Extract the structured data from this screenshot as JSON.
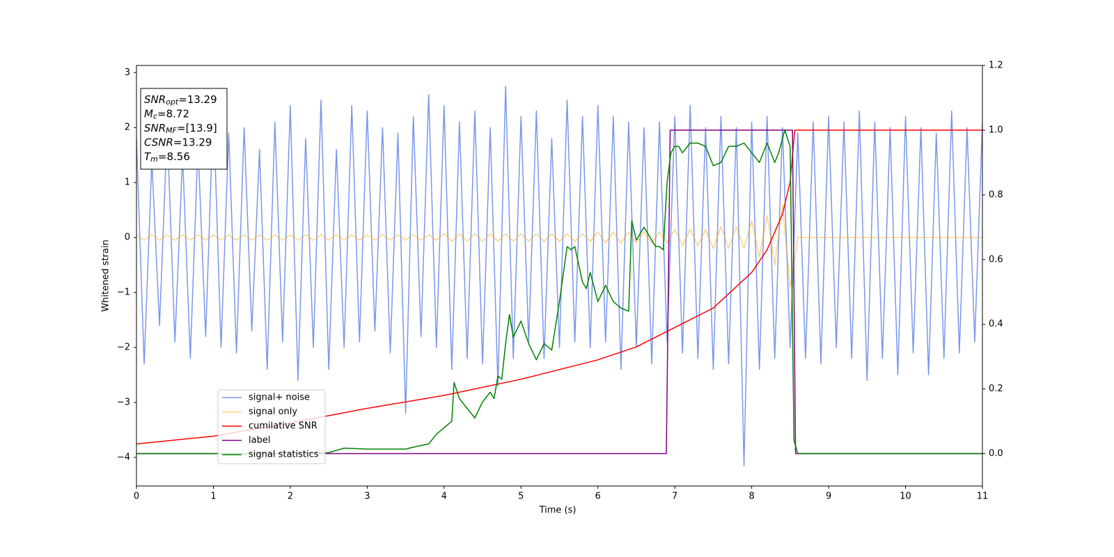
{
  "chart_data": {
    "type": "line",
    "xlabel": "Time (s)",
    "ylabel": "Whitened strain",
    "xlim": [
      0,
      11
    ],
    "ylim": [
      -4.52,
      3.13
    ],
    "y2lim": [
      -0.1,
      1.2
    ],
    "xticks": [
      0,
      1,
      2,
      3,
      4,
      5,
      6,
      7,
      8,
      9,
      10,
      11
    ],
    "yticks": [
      {
        "value": -4,
        "label": "−4"
      },
      {
        "value": -3,
        "label": "−3"
      },
      {
        "value": -2,
        "label": "−2"
      },
      {
        "value": -1,
        "label": "−1"
      },
      0,
      1,
      2,
      3
    ],
    "y2ticks": [
      {
        "value": 0,
        "label": "0.0"
      },
      0.2,
      0.4,
      0.6,
      0.8,
      {
        "value": 1,
        "label": "1.0"
      },
      1.2
    ],
    "legend": "lower left",
    "x": [
      0,
      0.1,
      0.2,
      0.3,
      0.4,
      0.5,
      0.6,
      0.7,
      0.8,
      0.9,
      1,
      1.1,
      1.2,
      1.3,
      1.4,
      1.5,
      1.6,
      1.7,
      1.8,
      1.9,
      2,
      2.1,
      2.2,
      2.3,
      2.4,
      2.5,
      2.6,
      2.7,
      2.8,
      2.9,
      3,
      3.1,
      3.2,
      3.3,
      3.4,
      3.5,
      3.6,
      3.7,
      3.8,
      3.9,
      4,
      4.1,
      4.2,
      4.3,
      4.4,
      4.5,
      4.6,
      4.7,
      4.8,
      4.9,
      5,
      5.1,
      5.2,
      5.3,
      5.4,
      5.5,
      5.6,
      5.7,
      5.8,
      5.9,
      6,
      6.1,
      6.2,
      6.3,
      6.4,
      6.5,
      6.6,
      6.7,
      6.8,
      6.9,
      7,
      7.1,
      7.2,
      7.3,
      7.4,
      7.5,
      7.6,
      7.7,
      7.8,
      7.9,
      8,
      8.1,
      8.2,
      8.3,
      8.4,
      8.5,
      8.6,
      8.7,
      8.8,
      8.9,
      9,
      9.1,
      9.2,
      9.3,
      9.4,
      9.5,
      9.6,
      9.7,
      9.8,
      9.9,
      10,
      10.1,
      10.2,
      10.3,
      10.4,
      10.5,
      10.6,
      10.7,
      10.8,
      10.9,
      11
    ],
    "series": [
      {
        "name": "signal+ noise",
        "color": "royalblue",
        "alpha": 0.7,
        "values": [
          1.8,
          -2.3,
          1.4,
          -1.6,
          2.0,
          -1.9,
          1.5,
          -2.2,
          1.7,
          -1.8,
          2.4,
          -2.0,
          1.9,
          -2.1,
          2.0,
          -1.7,
          1.6,
          -2.4,
          2.1,
          -1.9,
          2.4,
          -2.6,
          1.8,
          -2.0,
          2.5,
          -2.4,
          1.6,
          -2.0,
          2.4,
          -1.9,
          2.3,
          -1.7,
          2.0,
          -2.1,
          1.9,
          -3.2,
          2.2,
          -1.8,
          2.6,
          -2.0,
          2.4,
          -2.4,
          2.1,
          -2.2,
          2.3,
          -2.3,
          2.0,
          -2.7,
          2.75,
          -2.2,
          2.2,
          -1.9,
          2.3,
          -2.2,
          1.8,
          -2.0,
          2.5,
          -1.9,
          2.2,
          -2.0,
          2.4,
          -1.9,
          2.2,
          -2.4,
          2.1,
          -2.0,
          2.0,
          -2.3,
          2.1,
          -1.9,
          2.2,
          -2.1,
          2.4,
          -2.2,
          2.0,
          -2.4,
          2.2,
          -2.3,
          2.0,
          -4.15,
          2.1,
          -2.4,
          2.2,
          -2.2,
          2.0,
          -2.0,
          1.9,
          -2.2,
          2.1,
          -2.3,
          2.2,
          -2.0,
          2.1,
          -2.2,
          2.3,
          -2.6,
          2.1,
          -2.2,
          2.0,
          -2.5,
          2.2,
          -2.1,
          2.0,
          -2.5,
          1.9,
          -2.2,
          2.3,
          -2.1,
          2.0,
          -1.9,
          2.1
        ]
      },
      {
        "name": "signal only",
        "color": "orange",
        "alpha": 0.5,
        "values": [
          0.05,
          -0.05,
          0.05,
          -0.05,
          0.05,
          -0.05,
          0.05,
          -0.05,
          0.05,
          -0.05,
          0.05,
          -0.05,
          0.05,
          -0.05,
          0.05,
          -0.05,
          0.05,
          -0.05,
          0.05,
          -0.05,
          0.05,
          -0.05,
          0.05,
          -0.05,
          0.05,
          -0.05,
          0.05,
          -0.05,
          0.05,
          -0.05,
          0.05,
          -0.05,
          0.05,
          -0.05,
          0.05,
          -0.05,
          0.05,
          -0.05,
          0.05,
          -0.05,
          0.07,
          -0.07,
          0.07,
          -0.07,
          0.07,
          -0.07,
          0.07,
          -0.07,
          0.07,
          -0.07,
          0.07,
          -0.07,
          0.07,
          -0.07,
          0.07,
          -0.07,
          0.07,
          -0.07,
          0.07,
          -0.07,
          0.1,
          -0.1,
          0.1,
          -0.1,
          0.1,
          -0.1,
          0.1,
          -0.1,
          0.1,
          -0.1,
          0.15,
          -0.15,
          0.15,
          -0.15,
          0.15,
          -0.2,
          0.2,
          -0.2,
          0.2,
          -0.2,
          0.3,
          -0.35,
          0.4,
          -0.5,
          0.6,
          -0.9,
          0,
          0,
          0,
          0,
          0,
          0,
          0,
          0,
          0,
          0,
          0,
          0,
          0,
          0,
          0,
          0,
          0,
          0,
          0,
          0,
          0,
          0,
          0,
          0,
          0
        ]
      },
      {
        "name": "cumilative SNR",
        "color": "red",
        "axis": "y2",
        "x": [
          0,
          1,
          2,
          3,
          4,
          5,
          6,
          6.5,
          7,
          7.5,
          8,
          8.2,
          8.4,
          8.5,
          8.56,
          9,
          10,
          11
        ],
        "values": [
          0.03,
          0.054,
          0.095,
          0.14,
          0.18,
          0.23,
          0.29,
          0.33,
          0.39,
          0.45,
          0.56,
          0.63,
          0.74,
          0.84,
          1.0,
          1.0,
          1.0,
          1.0
        ]
      },
      {
        "name": "label",
        "color": "purple",
        "axis": "y2",
        "x": [
          0,
          6.89,
          6.94,
          8.53,
          8.57,
          11
        ],
        "values": [
          0,
          0,
          1,
          1,
          0,
          0
        ]
      },
      {
        "name": "signal statistics",
        "color": "green",
        "axis": "y2",
        "x": [
          0,
          2,
          2.5,
          2.7,
          3,
          3.5,
          3.6,
          3.8,
          3.9,
          4,
          4.1,
          4.13,
          4.2,
          4.3,
          4.4,
          4.5,
          4.6,
          4.65,
          4.7,
          4.75,
          4.8,
          4.85,
          4.9,
          5,
          5.1,
          5.2,
          5.3,
          5.4,
          5.5,
          5.6,
          5.65,
          5.7,
          5.8,
          5.85,
          5.9,
          6,
          6.1,
          6.2,
          6.3,
          6.4,
          6.44,
          6.5,
          6.6,
          6.7,
          6.75,
          6.8,
          6.85,
          6.9,
          6.95,
          7,
          7.05,
          7.1,
          7.2,
          7.3,
          7.4,
          7.5,
          7.6,
          7.7,
          7.8,
          7.9,
          8,
          8.1,
          8.2,
          8.3,
          8.35,
          8.43,
          8.5,
          8.55,
          8.6,
          11
        ],
        "values": [
          0,
          0,
          0.003,
          0.017,
          0.014,
          0.014,
          0.02,
          0.03,
          0.06,
          0.08,
          0.1,
          0.22,
          0.17,
          0.14,
          0.11,
          0.16,
          0.19,
          0.17,
          0.24,
          0.23,
          0.34,
          0.43,
          0.36,
          0.41,
          0.34,
          0.29,
          0.34,
          0.32,
          0.47,
          0.64,
          0.63,
          0.64,
          0.53,
          0.51,
          0.56,
          0.47,
          0.52,
          0.47,
          0.45,
          0.44,
          0.72,
          0.66,
          0.7,
          0.66,
          0.64,
          0.64,
          0.63,
          0.84,
          0.93,
          0.95,
          0.95,
          0.93,
          0.96,
          0.96,
          0.95,
          0.89,
          0.9,
          0.95,
          0.95,
          0.96,
          0.93,
          0.9,
          0.96,
          0.9,
          0.93,
          1.0,
          0.95,
          0.04,
          0,
          0
        ]
      }
    ],
    "annotation": [
      {
        "main": "SNR",
        "sub": "opt",
        "rest": "=13.29"
      },
      {
        "main": "M",
        "sub": "c",
        "rest": "=8.72"
      },
      {
        "main": "SNR",
        "sub": "MF",
        "rest": "=[13.9]"
      },
      {
        "main": "CSNR",
        "rest": "=13.29"
      },
      {
        "main": "T",
        "sub": "m",
        "rest": "=8.56"
      }
    ]
  }
}
